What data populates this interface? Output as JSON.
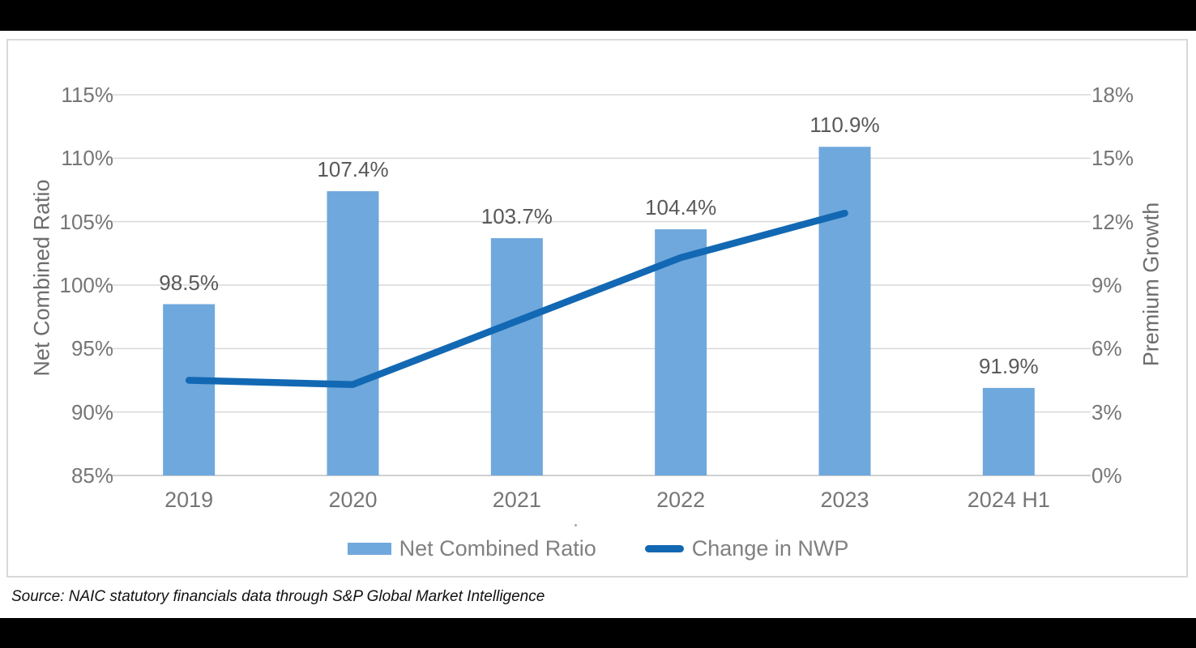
{
  "chart_data": {
    "type": "combo",
    "categories": [
      "2019",
      "2020",
      "2021",
      "2022",
      "2023",
      "2024 H1"
    ],
    "series": [
      {
        "name": "Net Combined Ratio",
        "type": "bar",
        "axis": "left",
        "values": [
          98.5,
          107.4,
          103.7,
          104.4,
          110.9,
          91.9
        ],
        "labels": [
          "98.5%",
          "107.4%",
          "103.7%",
          "104.4%",
          "110.9%",
          "91.9%"
        ],
        "color": "#6fa8dc"
      },
      {
        "name": "Change in NWP",
        "type": "line",
        "axis": "right",
        "values": [
          4.5,
          4.3,
          7.3,
          10.3,
          12.4
        ],
        "color": "#1268b3"
      }
    ],
    "left_axis": {
      "title": "Net Combined Ratio",
      "min": 85,
      "max": 115,
      "tick_labels": [
        "115%",
        "110%",
        "105%",
        "100%",
        "95%",
        "90%",
        "85%"
      ]
    },
    "right_axis": {
      "title": "Premium Growth",
      "min": 0,
      "max": 18,
      "tick_labels": [
        "18%",
        "15%",
        "12%",
        "9%",
        "6%",
        "3%",
        "0%"
      ]
    },
    "legend": [
      {
        "label": "Net Combined Ratio",
        "swatch": "bar",
        "color": "#6fa8dc"
      },
      {
        "label": "Change in NWP",
        "swatch": "line",
        "color": "#1268b3"
      }
    ],
    "grid": "horizontal",
    "legend_position": "bottom"
  },
  "source_note": "Source: NAIC statutory financials data through S&P Global Market Intelligence",
  "colors": {
    "bar": "#6fa8dc",
    "line": "#1268b3",
    "gridline": "#d9d9d9",
    "axis_line": "#d0d0d0",
    "tick_text": "#767676",
    "data_label_text": "#595959",
    "legend_text": "#808080",
    "panel_border": "#d9d9d9",
    "letterbox": "#000000"
  }
}
